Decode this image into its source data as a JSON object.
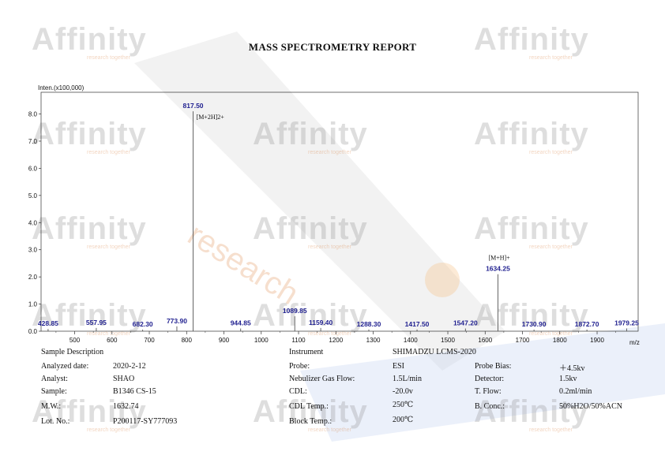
{
  "report": {
    "title": "MASS SPECTROMETRY REPORT",
    "watermark_word": "Affinity",
    "watermark_tagline": "research together",
    "watermark_diagonal": "research"
  },
  "chart_data": {
    "type": "bar",
    "title": "",
    "ylabel": "Inten.(x100,000)",
    "xlabel": "m/z",
    "xlim": [
      410,
      2010
    ],
    "ylim": [
      0,
      8.8
    ],
    "xticks": [
      500,
      600,
      700,
      800,
      900,
      1000,
      1100,
      1200,
      1300,
      1400,
      1500,
      1600,
      1700,
      1800,
      1900
    ],
    "yticks": [
      0.0,
      1.0,
      2.0,
      3.0,
      4.0,
      5.0,
      6.0,
      7.0,
      8.0
    ],
    "peaks": [
      {
        "mz": 428.85,
        "intensity": 0.08
      },
      {
        "mz": 557.95,
        "intensity": 0.12
      },
      {
        "mz": 682.3,
        "intensity": 0.06
      },
      {
        "mz": 773.9,
        "intensity": 0.18
      },
      {
        "mz": 817.5,
        "intensity": 8.1
      },
      {
        "mz": 944.85,
        "intensity": 0.1
      },
      {
        "mz": 1089.85,
        "intensity": 0.55
      },
      {
        "mz": 1159.4,
        "intensity": 0.12
      },
      {
        "mz": 1288.3,
        "intensity": 0.06
      },
      {
        "mz": 1417.5,
        "intensity": 0.06
      },
      {
        "mz": 1547.2,
        "intensity": 0.1
      },
      {
        "mz": 1634.25,
        "intensity": 2.1
      },
      {
        "mz": 1730.9,
        "intensity": 0.06
      },
      {
        "mz": 1872.7,
        "intensity": 0.06
      },
      {
        "mz": 1979.25,
        "intensity": 0.1
      }
    ],
    "peak_labels": [
      "428.85",
      "557.95",
      "682.30",
      "773.90",
      "817.50",
      "944.85",
      "1089.85",
      "1159.40",
      "1288.30",
      "1417.50",
      "1547.20",
      "1634.25",
      "1730.90",
      "1872.70",
      "1979.25"
    ],
    "annotations": [
      {
        "text": "[M+2H]2+",
        "mz": 817.5
      },
      {
        "text": "[M+H]+",
        "mz": 1634.25
      }
    ]
  },
  "sample": {
    "header": "Sample Description",
    "rows": [
      {
        "label": "Analyzed date:",
        "value": "2020-2-12"
      },
      {
        "label": "Analyst:",
        "value": "SHAO"
      },
      {
        "label": "Sample:",
        "value": "B1346 CS-15"
      },
      {
        "label": "M.W.:",
        "value": "1632.74"
      },
      {
        "label": "Lot. No.:",
        "value": "P200117-SY777093"
      }
    ]
  },
  "instrument": {
    "header": "Instrument",
    "model": "SHIMADZU LCMS-2020",
    "rows": [
      {
        "label": "Probe:",
        "value": "ESI"
      },
      {
        "label": "Nebulizer Gas Flow:",
        "value": "1.5L/min"
      },
      {
        "label": "CDL:",
        "value": "-20.0v"
      },
      {
        "label": "CDL Temp.:",
        "value": "250℃"
      },
      {
        "label": "Block Temp.:",
        "value": "200℃"
      }
    ],
    "right_rows": [
      {
        "label": "Probe Bias:",
        "value": "＋4.5kv"
      },
      {
        "label": "Detector:",
        "value": "1.5kv"
      },
      {
        "label": "T. Flow:",
        "value": "0.2ml/min"
      },
      {
        "label": "B. Conc.:",
        "value": "50%H2O/50%ACN"
      }
    ]
  }
}
